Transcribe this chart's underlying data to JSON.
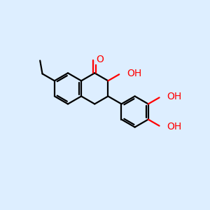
{
  "bg_color": "#ddeeff",
  "bond_color": "#000000",
  "o_color": "#ff0000",
  "line_width": 1.6,
  "font_size": 10,
  "fig_size": [
    3.0,
    3.0
  ],
  "dpi": 100,
  "xlim": [
    0,
    10
  ],
  "ylim": [
    0,
    10
  ]
}
